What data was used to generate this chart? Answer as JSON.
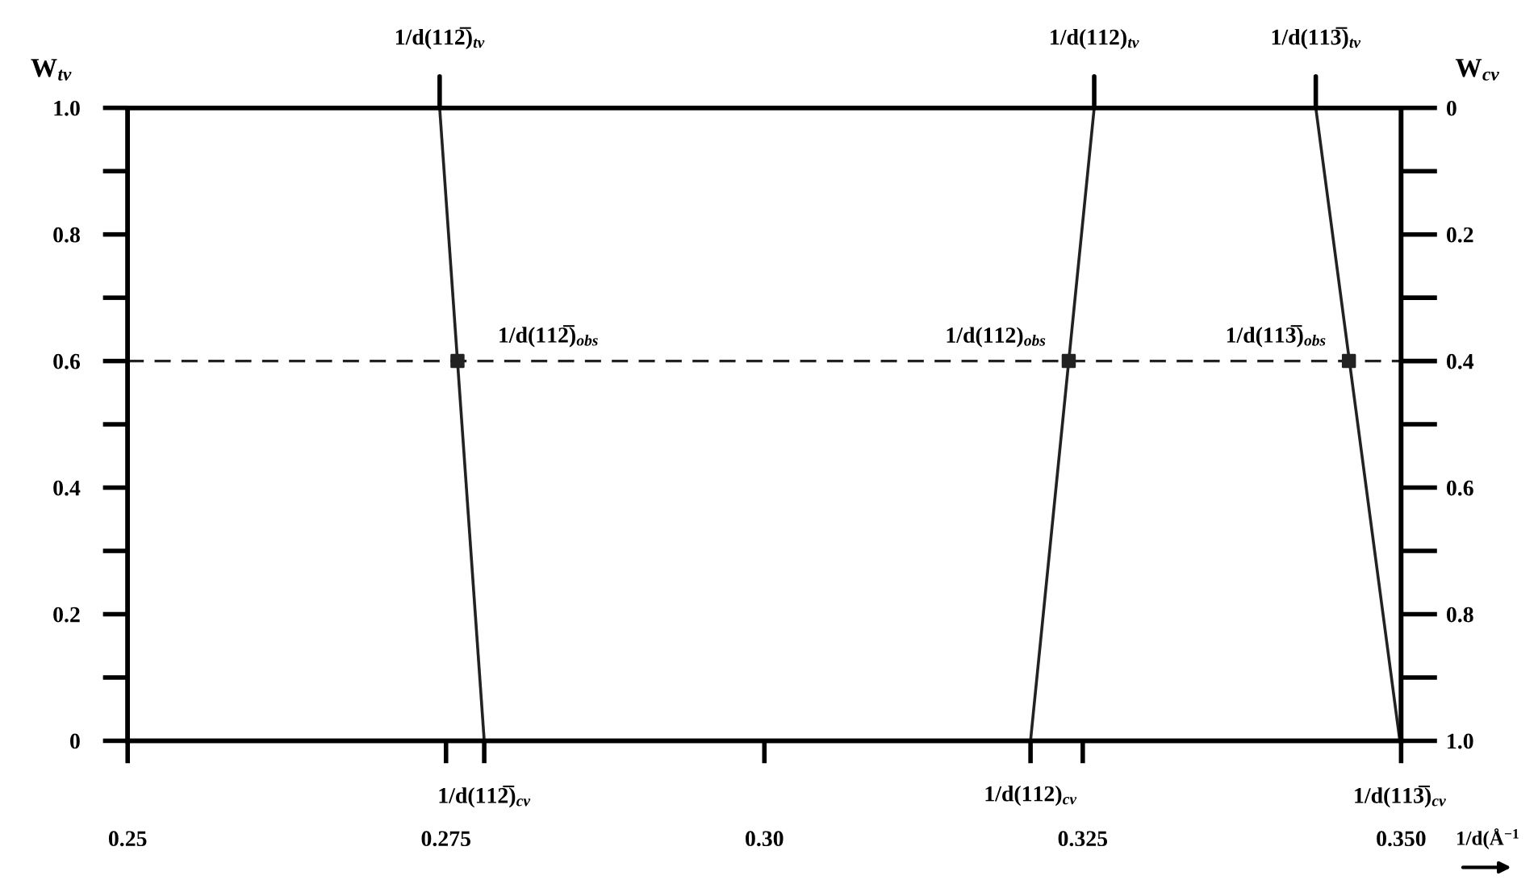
{
  "chart_data": {
    "type": "line",
    "xlabel": "1/d(Å$^{−1}$",
    "ylabel": "W$_{tv}$",
    "y2label": "W$_{cv}$",
    "xlim": [
      0.25,
      0.35
    ],
    "xticks": [
      0.25,
      0.275,
      {
        "value": 0.3,
        "label": "0.30"
      },
      0.325,
      {
        "value": 0.35,
        "label": "0.350"
      },
      {
        "value": 0.278,
        "label": null
      },
      {
        "value": 0.3209,
        "label": null
      }
    ],
    "ylim": [
      0,
      1.0
    ],
    "yticks": [
      0,
      {
        "value": 0.1,
        "label": null
      },
      0.2,
      {
        "value": 0.3,
        "label": null
      },
      0.4,
      {
        "value": 0.5,
        "label": null
      },
      0.6,
      {
        "value": 0.7,
        "label": null
      },
      0.8,
      {
        "value": 0.9,
        "label": null
      },
      {
        "value": 1.0,
        "label": "1.0"
      }
    ],
    "y2lim": [
      1.0,
      0
    ],
    "y2ticks": [
      0,
      {
        "value": 0.1,
        "label": null
      },
      0.2,
      {
        "value": 0.3,
        "label": null
      },
      0.4,
      {
        "value": 0.5,
        "label": null
      },
      0.6,
      {
        "value": 0.7,
        "label": null
      },
      0.8,
      {
        "value": 0.9,
        "label": null
      },
      {
        "value": 1.0,
        "label": "1.0"
      }
    ],
    "grid": false,
    "line_style": "solid",
    "marker": "none",
    "series": [
      {
        "color": "#222222",
        "x": [
          0.278,
          0.2745
        ],
        "values": [
          0,
          1.0
        ]
      },
      {
        "color": "#222222",
        "x": [
          0.3209,
          0.3259
        ],
        "values": [
          0,
          1.0
        ]
      },
      {
        "color": "#222222",
        "x": [
          0.3499,
          0.3433
        ],
        "values": [
          0,
          1.0
        ]
      },
      {
        "type": "scatter",
        "color": "#222222",
        "marker": "square",
        "x": [
          0.2759,
          0.3239,
          0.3459
        ],
        "values": [
          0.6,
          0.6,
          0.6
        ]
      }
    ],
    "ref_lines": [
      {
        "axis": "y",
        "value": 0.6,
        "color": "#222222",
        "line_style": "dashed"
      }
    ],
    "annotations": [
      {
        "text": "1/d(112̅)$_{tv}$",
        "x": 0.2745,
        "y": 1.0
      },
      {
        "text": "1/d(112)$_{tv}$",
        "x": 0.3259,
        "y": 1.0
      },
      {
        "text": "1/d(113̅)$_{tv}$",
        "x": 0.3433,
        "y": 1.0
      },
      {
        "text": "1/d(112̅)$_{cv}$",
        "x": 0.278,
        "y": 0
      },
      {
        "text": "1/d(112)$_{cv}$",
        "x": 0.3209,
        "y": 0
      },
      {
        "text": "1/d(113̅)$_{cv}$",
        "x": 0.3499,
        "y": 0
      },
      {
        "text": "1/d(112̅)$_{obs}$",
        "x": 0.2759,
        "y": 0.6
      },
      {
        "text": "1/d(112)$_{obs}$",
        "x": 0.3239,
        "y": 0.6
      },
      {
        "text": "1/d(113̅)$_{obs}$",
        "x": 0.3459,
        "y": 0.6
      }
    ]
  }
}
